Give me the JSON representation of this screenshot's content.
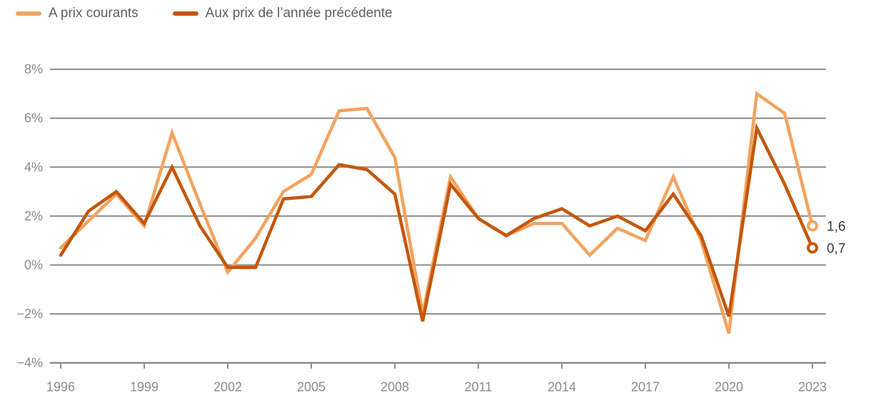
{
  "legend": {
    "items": [
      {
        "label": "A prix courants",
        "color": "#F3A35F"
      },
      {
        "label": "Aux prix de l’année précédente",
        "color": "#C4570A"
      }
    ]
  },
  "chart_data": {
    "type": "line",
    "title": "",
    "xlabel": "",
    "ylabel": "",
    "unit": "%",
    "x": [
      1996,
      1997,
      1998,
      1999,
      2000,
      2001,
      2002,
      2003,
      2004,
      2005,
      2006,
      2007,
      2008,
      2009,
      2010,
      2011,
      2012,
      2013,
      2014,
      2015,
      2016,
      2017,
      2018,
      2019,
      2020,
      2021,
      2022,
      2023
    ],
    "series": [
      {
        "name": "A prix courants",
        "color": "#F3A35F",
        "values": [
          0.7,
          1.8,
          2.9,
          1.6,
          5.4,
          2.5,
          -0.3,
          1.1,
          3.0,
          3.7,
          6.3,
          6.4,
          4.4,
          -2.0,
          3.6,
          1.9,
          1.2,
          1.7,
          1.7,
          0.4,
          1.5,
          1.0,
          3.6,
          1.0,
          -2.8,
          7.0,
          6.2,
          1.6
        ],
        "end_label": "1,6"
      },
      {
        "name": "Aux prix de l’année précédente",
        "color": "#C4570A",
        "values": [
          0.4,
          2.2,
          3.0,
          1.7,
          4.0,
          1.6,
          -0.1,
          -0.1,
          2.7,
          2.8,
          4.1,
          3.9,
          2.9,
          -2.3,
          3.3,
          1.9,
          1.2,
          1.9,
          2.3,
          1.6,
          2.0,
          1.4,
          2.9,
          1.2,
          -2.1,
          5.6,
          3.3,
          0.7
        ],
        "end_label": "0,7"
      }
    ],
    "ylim": [
      -4,
      8
    ],
    "y_ticks": [
      8,
      6,
      4,
      2,
      0,
      -2,
      -4
    ],
    "y_tick_labels": [
      "8%",
      "6%",
      "4%",
      "2%",
      "0%",
      "−2%",
      "−4%"
    ],
    "x_ticks": [
      1996,
      1999,
      2002,
      2005,
      2008,
      2011,
      2014,
      2017,
      2020,
      2023
    ],
    "x_tick_labels": [
      "1996",
      "1999",
      "2002",
      "2005",
      "2008",
      "2011",
      "2014",
      "2017",
      "2020",
      "2023"
    ],
    "grid": "horizontal",
    "legend_position": "top-left",
    "colors": {
      "grid": "#8C8C8C",
      "axis": "#8C8C8C",
      "tick_text": "#8B8B8B",
      "end_label_text": "#3C3C3C",
      "marker_fill": "#FFFFFF"
    }
  }
}
